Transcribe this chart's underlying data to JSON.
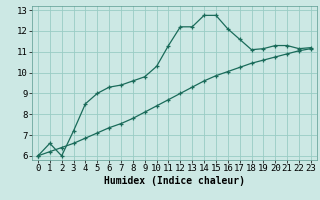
{
  "xlabel": "Humidex (Indice chaleur)",
  "ylabel": "",
  "background_color": "#cce8e4",
  "grid_color": "#99ccc4",
  "line_color": "#1a6b5a",
  "xlim": [
    -0.5,
    23.5
  ],
  "ylim": [
    5.8,
    13.2
  ],
  "xticks": [
    0,
    1,
    2,
    3,
    4,
    5,
    6,
    7,
    8,
    9,
    10,
    11,
    12,
    13,
    14,
    15,
    16,
    17,
    18,
    19,
    20,
    21,
    22,
    23
  ],
  "yticks": [
    6,
    7,
    8,
    9,
    10,
    11,
    12,
    13
  ],
  "line1_x": [
    0,
    1,
    2,
    3,
    4,
    5,
    6,
    7,
    8,
    9,
    10,
    11,
    12,
    13,
    14,
    15,
    16,
    17,
    18,
    19,
    20,
    21,
    22,
    23
  ],
  "line1_y": [
    6.0,
    6.6,
    6.0,
    7.2,
    8.5,
    9.0,
    9.3,
    9.4,
    9.6,
    9.8,
    10.3,
    11.3,
    12.2,
    12.2,
    12.75,
    12.75,
    12.1,
    11.6,
    11.1,
    11.15,
    11.3,
    11.3,
    11.15,
    11.2
  ],
  "line2_x": [
    0,
    1,
    2,
    3,
    4,
    5,
    6,
    7,
    8,
    9,
    10,
    11,
    12,
    13,
    14,
    15,
    16,
    17,
    18,
    19,
    20,
    21,
    22,
    23
  ],
  "line2_y": [
    6.0,
    6.2,
    6.4,
    6.6,
    6.85,
    7.1,
    7.35,
    7.55,
    7.8,
    8.1,
    8.4,
    8.7,
    9.0,
    9.3,
    9.6,
    9.85,
    10.05,
    10.25,
    10.45,
    10.6,
    10.75,
    10.9,
    11.05,
    11.15
  ],
  "xlabel_fontsize": 7,
  "tick_fontsize": 6.5
}
